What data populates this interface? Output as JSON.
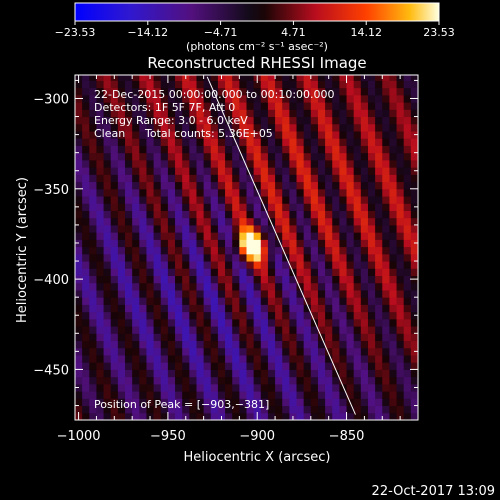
{
  "chart_data": {
    "type": "heatmap",
    "title": "Reconstructed RHESSI Image",
    "xlabel": "Heliocentric X (arcsec)",
    "ylabel": "Heliocentric Y (arcsec)",
    "xlim": [
      -1002,
      -810
    ],
    "ylim": [
      -478,
      -287
    ],
    "x_ticks": [
      -1000,
      -950,
      -900,
      -850
    ],
    "x_tick_labels": [
      "−1000",
      "−950",
      "−900",
      "−850"
    ],
    "y_ticks": [
      -300,
      -350,
      -400,
      -450
    ],
    "y_tick_labels": [
      "−300",
      "−350",
      "−400",
      "−450"
    ],
    "colorbar": {
      "min": -23.53,
      "max": 23.53,
      "ticks": [
        -23.53,
        -14.12,
        -4.71,
        4.71,
        14.12,
        23.53
      ],
      "tick_labels": [
        "−23.53",
        "−14.12",
        "−4.71",
        "4.71",
        "14.12",
        "23.53"
      ],
      "unit_label": "(photons cm⁻² s⁻¹ asec⁻²)"
    },
    "peak": {
      "x": -903,
      "y": -381,
      "value": 23.53
    },
    "annotations": {
      "time_range": "22-Dec-2015 00:00:00.000 to 00:10:00.000",
      "detectors": "Detectors: 1F 5F 7F, Att 0",
      "energy_range": "Energy Range: 3.0 - 6.0 keV",
      "method": "Clean",
      "total_counts": "Total counts: 5.36E+05",
      "peak_position": "Position of Peak = [−903,−381]"
    },
    "limb_line": [
      {
        "x": -928,
        "y": -288
      },
      {
        "x": -845,
        "y": -475
      }
    ],
    "timestamp": "22-Oct-2017 13:09"
  },
  "colors": {
    "background": "#000000",
    "axes": "#ffffff",
    "limb": "#ffffff",
    "colormap": [
      "#0000ff",
      "#3a0d8c",
      "#5e0f73",
      "#000000",
      "#b80d1e",
      "#ff1e00",
      "#ffaa00",
      "#ffffc8"
    ]
  }
}
